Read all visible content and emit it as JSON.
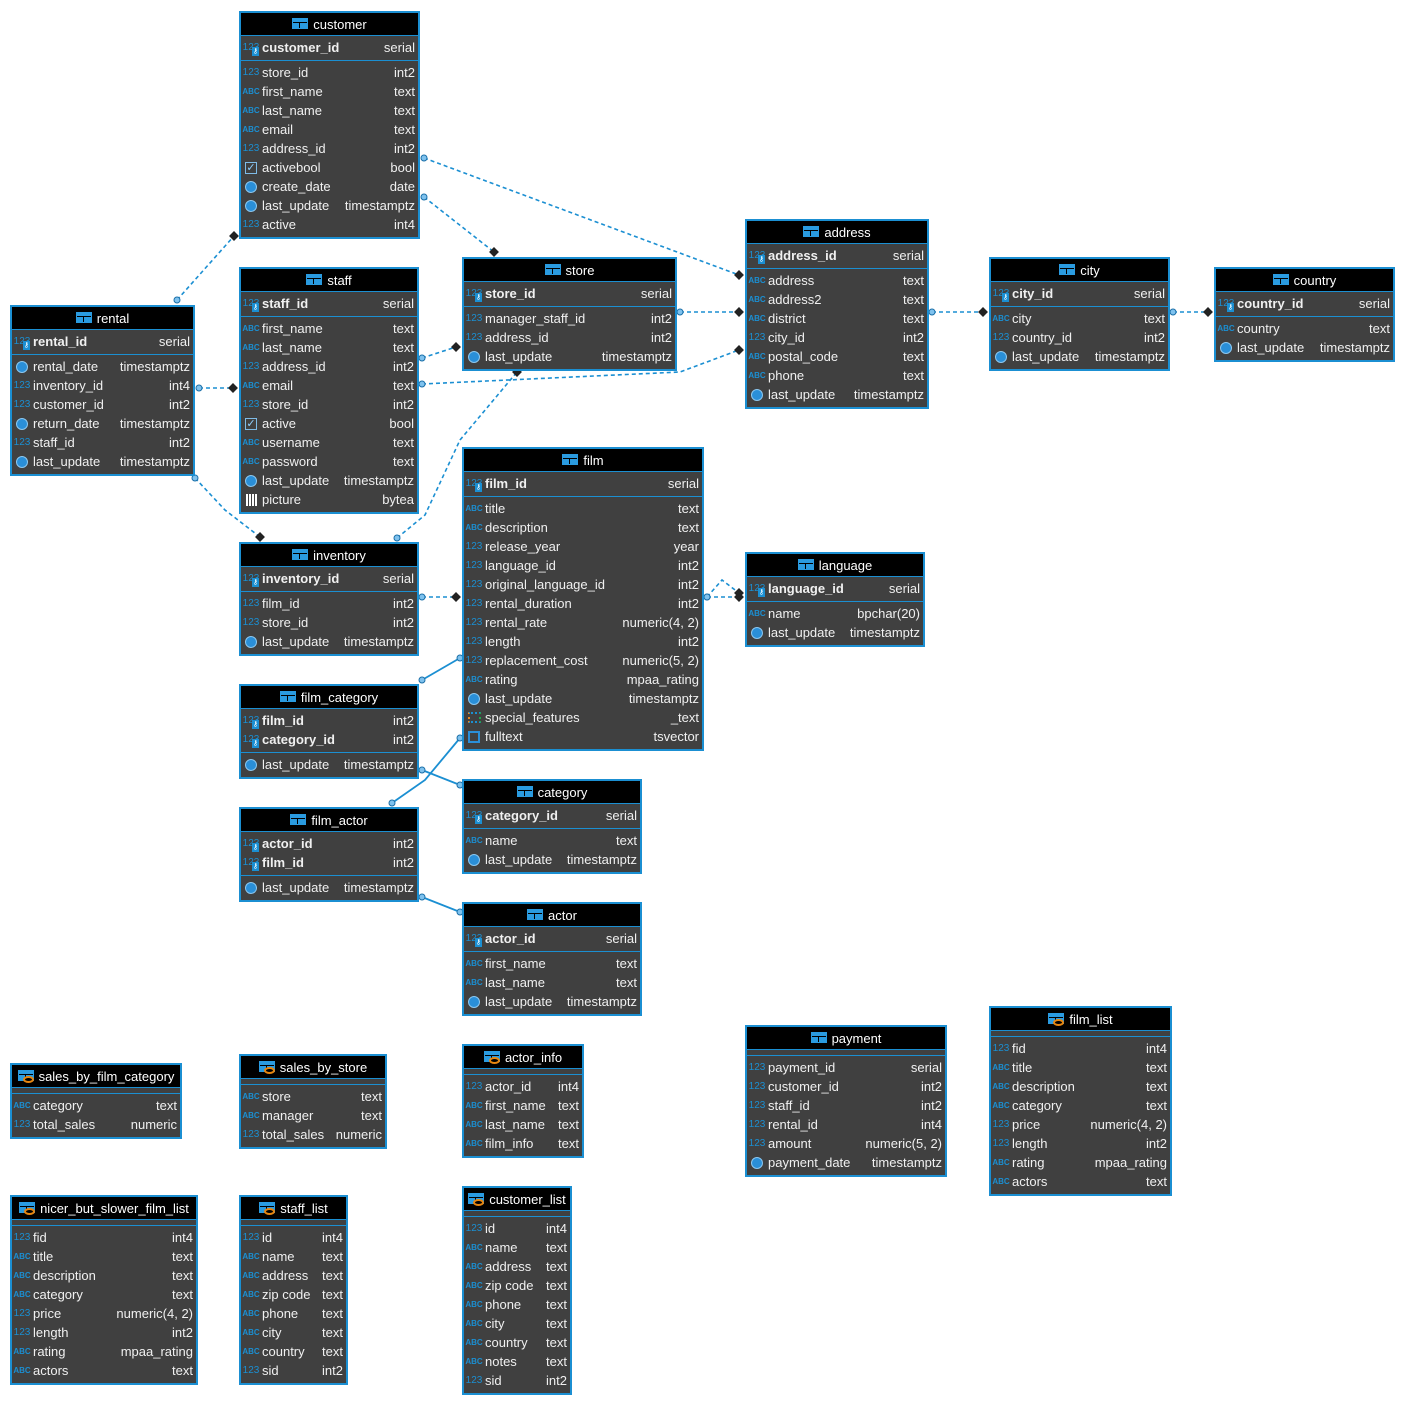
{
  "colors": {
    "border": "#1b8fd2",
    "header": "#000000",
    "body": "#404040",
    "link": "#1b8fd2"
  },
  "tables": [
    {
      "name": "customer",
      "kind": "table",
      "keys": [
        {
          "name": "customer_id",
          "type": "serial",
          "icon": "num"
        }
      ],
      "columns": [
        {
          "name": "store_id",
          "type": "int2",
          "icon": "num"
        },
        {
          "name": "first_name",
          "type": "text",
          "icon": "abc"
        },
        {
          "name": "last_name",
          "type": "text",
          "icon": "abc"
        },
        {
          "name": "email",
          "type": "text",
          "icon": "abc"
        },
        {
          "name": "address_id",
          "type": "int2",
          "icon": "num"
        },
        {
          "name": "activebool",
          "type": "bool",
          "icon": "check"
        },
        {
          "name": "create_date",
          "type": "date",
          "icon": "clock"
        },
        {
          "name": "last_update",
          "type": "timestamptz",
          "icon": "clock"
        },
        {
          "name": "active",
          "type": "int4",
          "icon": "num"
        }
      ]
    },
    {
      "name": "rental",
      "kind": "table",
      "keys": [
        {
          "name": "rental_id",
          "type": "serial",
          "icon": "num"
        }
      ],
      "columns": [
        {
          "name": "rental_date",
          "type": "timestamptz",
          "icon": "clock"
        },
        {
          "name": "inventory_id",
          "type": "int4",
          "icon": "num"
        },
        {
          "name": "customer_id",
          "type": "int2",
          "icon": "num"
        },
        {
          "name": "return_date",
          "type": "timestamptz",
          "icon": "clock"
        },
        {
          "name": "staff_id",
          "type": "int2",
          "icon": "num"
        },
        {
          "name": "last_update",
          "type": "timestamptz",
          "icon": "clock"
        }
      ]
    },
    {
      "name": "staff",
      "kind": "table",
      "keys": [
        {
          "name": "staff_id",
          "type": "serial",
          "icon": "num"
        }
      ],
      "columns": [
        {
          "name": "first_name",
          "type": "text",
          "icon": "abc"
        },
        {
          "name": "last_name",
          "type": "text",
          "icon": "abc"
        },
        {
          "name": "address_id",
          "type": "int2",
          "icon": "num"
        },
        {
          "name": "email",
          "type": "text",
          "icon": "abc"
        },
        {
          "name": "store_id",
          "type": "int2",
          "icon": "num"
        },
        {
          "name": "active",
          "type": "bool",
          "icon": "check"
        },
        {
          "name": "username",
          "type": "text",
          "icon": "abc"
        },
        {
          "name": "password",
          "type": "text",
          "icon": "abc"
        },
        {
          "name": "last_update",
          "type": "timestamptz",
          "icon": "clock"
        },
        {
          "name": "picture",
          "type": "bytea",
          "icon": "image"
        }
      ]
    },
    {
      "name": "store",
      "kind": "table",
      "keys": [
        {
          "name": "store_id",
          "type": "serial",
          "icon": "num"
        }
      ],
      "columns": [
        {
          "name": "manager_staff_id",
          "type": "int2",
          "icon": "num"
        },
        {
          "name": "address_id",
          "type": "int2",
          "icon": "num"
        },
        {
          "name": "last_update",
          "type": "timestamptz",
          "icon": "clock"
        }
      ]
    },
    {
      "name": "address",
      "kind": "table",
      "keys": [
        {
          "name": "address_id",
          "type": "serial",
          "icon": "num"
        }
      ],
      "columns": [
        {
          "name": "address",
          "type": "text",
          "icon": "abc"
        },
        {
          "name": "address2",
          "type": "text",
          "icon": "abc"
        },
        {
          "name": "district",
          "type": "text",
          "icon": "abc"
        },
        {
          "name": "city_id",
          "type": "int2",
          "icon": "num"
        },
        {
          "name": "postal_code",
          "type": "text",
          "icon": "abc"
        },
        {
          "name": "phone",
          "type": "text",
          "icon": "abc"
        },
        {
          "name": "last_update",
          "type": "timestamptz",
          "icon": "clock"
        }
      ]
    },
    {
      "name": "city",
      "kind": "table",
      "keys": [
        {
          "name": "city_id",
          "type": "serial",
          "icon": "num"
        }
      ],
      "columns": [
        {
          "name": "city",
          "type": "text",
          "icon": "abc"
        },
        {
          "name": "country_id",
          "type": "int2",
          "icon": "num"
        },
        {
          "name": "last_update",
          "type": "timestamptz",
          "icon": "clock"
        }
      ]
    },
    {
      "name": "country",
      "kind": "table",
      "keys": [
        {
          "name": "country_id",
          "type": "serial",
          "icon": "num"
        }
      ],
      "columns": [
        {
          "name": "country",
          "type": "text",
          "icon": "abc"
        },
        {
          "name": "last_update",
          "type": "timestamptz",
          "icon": "clock"
        }
      ]
    },
    {
      "name": "film",
      "kind": "table",
      "keys": [
        {
          "name": "film_id",
          "type": "serial",
          "icon": "num"
        }
      ],
      "columns": [
        {
          "name": "title",
          "type": "text",
          "icon": "abc"
        },
        {
          "name": "description",
          "type": "text",
          "icon": "abc"
        },
        {
          "name": "release_year",
          "type": "year",
          "icon": "num"
        },
        {
          "name": "language_id",
          "type": "int2",
          "icon": "num"
        },
        {
          "name": "original_language_id",
          "type": "int2",
          "icon": "num"
        },
        {
          "name": "rental_duration",
          "type": "int2",
          "icon": "num"
        },
        {
          "name": "rental_rate",
          "type": "numeric(4, 2)",
          "icon": "num"
        },
        {
          "name": "length",
          "type": "int2",
          "icon": "num"
        },
        {
          "name": "replacement_cost",
          "type": "numeric(5, 2)",
          "icon": "num"
        },
        {
          "name": "rating",
          "type": "mpaa_rating",
          "icon": "abc"
        },
        {
          "name": "last_update",
          "type": "timestamptz",
          "icon": "clock"
        },
        {
          "name": "special_features",
          "type": "_text",
          "icon": "array"
        },
        {
          "name": "fulltext",
          "type": "tsvector",
          "icon": "doc"
        }
      ]
    },
    {
      "name": "language",
      "kind": "table",
      "keys": [
        {
          "name": "language_id",
          "type": "serial",
          "icon": "num"
        }
      ],
      "columns": [
        {
          "name": "name",
          "type": "bpchar(20)",
          "icon": "abc"
        },
        {
          "name": "last_update",
          "type": "timestamptz",
          "icon": "clock"
        }
      ]
    },
    {
      "name": "inventory",
      "kind": "table",
      "keys": [
        {
          "name": "inventory_id",
          "type": "serial",
          "icon": "num"
        }
      ],
      "columns": [
        {
          "name": "film_id",
          "type": "int2",
          "icon": "num"
        },
        {
          "name": "store_id",
          "type": "int2",
          "icon": "num"
        },
        {
          "name": "last_update",
          "type": "timestamptz",
          "icon": "clock"
        }
      ]
    },
    {
      "name": "film_category",
      "kind": "table",
      "keys": [
        {
          "name": "film_id",
          "type": "int2",
          "icon": "num"
        },
        {
          "name": "category_id",
          "type": "int2",
          "icon": "num"
        }
      ],
      "columns": [
        {
          "name": "last_update",
          "type": "timestamptz",
          "icon": "clock"
        }
      ]
    },
    {
      "name": "category",
      "kind": "table",
      "keys": [
        {
          "name": "category_id",
          "type": "serial",
          "icon": "num"
        }
      ],
      "columns": [
        {
          "name": "name",
          "type": "text",
          "icon": "abc"
        },
        {
          "name": "last_update",
          "type": "timestamptz",
          "icon": "clock"
        }
      ]
    },
    {
      "name": "film_actor",
      "kind": "table",
      "keys": [
        {
          "name": "actor_id",
          "type": "int2",
          "icon": "num"
        },
        {
          "name": "film_id",
          "type": "int2",
          "icon": "num"
        }
      ],
      "columns": [
        {
          "name": "last_update",
          "type": "timestamptz",
          "icon": "clock"
        }
      ]
    },
    {
      "name": "actor",
      "kind": "table",
      "keys": [
        {
          "name": "actor_id",
          "type": "serial",
          "icon": "num"
        }
      ],
      "columns": [
        {
          "name": "first_name",
          "type": "text",
          "icon": "abc"
        },
        {
          "name": "last_name",
          "type": "text",
          "icon": "abc"
        },
        {
          "name": "last_update",
          "type": "timestamptz",
          "icon": "clock"
        }
      ]
    },
    {
      "name": "sales_by_film_category",
      "kind": "view",
      "keys": [],
      "columns": [
        {
          "name": "category",
          "type": "text",
          "icon": "abc"
        },
        {
          "name": "total_sales",
          "type": "numeric",
          "icon": "num"
        }
      ]
    },
    {
      "name": "sales_by_store",
      "kind": "view",
      "keys": [],
      "columns": [
        {
          "name": "store",
          "type": "text",
          "icon": "abc"
        },
        {
          "name": "manager",
          "type": "text",
          "icon": "abc"
        },
        {
          "name": "total_sales",
          "type": "numeric",
          "icon": "num"
        }
      ]
    },
    {
      "name": "actor_info",
      "kind": "view",
      "keys": [],
      "columns": [
        {
          "name": "actor_id",
          "type": "int4",
          "icon": "num"
        },
        {
          "name": "first_name",
          "type": "text",
          "icon": "abc"
        },
        {
          "name": "last_name",
          "type": "text",
          "icon": "abc"
        },
        {
          "name": "film_info",
          "type": "text",
          "icon": "abc"
        }
      ]
    },
    {
      "name": "payment",
      "kind": "table",
      "keys": [],
      "columns": [
        {
          "name": "payment_id",
          "type": "serial",
          "icon": "num"
        },
        {
          "name": "customer_id",
          "type": "int2",
          "icon": "num"
        },
        {
          "name": "staff_id",
          "type": "int2",
          "icon": "num"
        },
        {
          "name": "rental_id",
          "type": "int4",
          "icon": "num"
        },
        {
          "name": "amount",
          "type": "numeric(5, 2)",
          "icon": "num"
        },
        {
          "name": "payment_date",
          "type": "timestamptz",
          "icon": "clock"
        }
      ]
    },
    {
      "name": "film_list",
      "kind": "view",
      "keys": [],
      "columns": [
        {
          "name": "fid",
          "type": "int4",
          "icon": "num"
        },
        {
          "name": "title",
          "type": "text",
          "icon": "abc"
        },
        {
          "name": "description",
          "type": "text",
          "icon": "abc"
        },
        {
          "name": "category",
          "type": "text",
          "icon": "abc"
        },
        {
          "name": "price",
          "type": "numeric(4, 2)",
          "icon": "num"
        },
        {
          "name": "length",
          "type": "int2",
          "icon": "num"
        },
        {
          "name": "rating",
          "type": "mpaa_rating",
          "icon": "abc"
        },
        {
          "name": "actors",
          "type": "text",
          "icon": "abc"
        }
      ]
    },
    {
      "name": "nicer_but_slower_film_list",
      "kind": "view",
      "keys": [],
      "columns": [
        {
          "name": "fid",
          "type": "int4",
          "icon": "num"
        },
        {
          "name": "title",
          "type": "text",
          "icon": "abc"
        },
        {
          "name": "description",
          "type": "text",
          "icon": "abc"
        },
        {
          "name": "category",
          "type": "text",
          "icon": "abc"
        },
        {
          "name": "price",
          "type": "numeric(4, 2)",
          "icon": "num"
        },
        {
          "name": "length",
          "type": "int2",
          "icon": "num"
        },
        {
          "name": "rating",
          "type": "mpaa_rating",
          "icon": "abc"
        },
        {
          "name": "actors",
          "type": "text",
          "icon": "abc"
        }
      ]
    },
    {
      "name": "staff_list",
      "kind": "view",
      "keys": [],
      "columns": [
        {
          "name": "id",
          "type": "int4",
          "icon": "num"
        },
        {
          "name": "name",
          "type": "text",
          "icon": "abc"
        },
        {
          "name": "address",
          "type": "text",
          "icon": "abc"
        },
        {
          "name": "zip code",
          "type": "text",
          "icon": "abc"
        },
        {
          "name": "phone",
          "type": "text",
          "icon": "abc"
        },
        {
          "name": "city",
          "type": "text",
          "icon": "abc"
        },
        {
          "name": "country",
          "type": "text",
          "icon": "abc"
        },
        {
          "name": "sid",
          "type": "int2",
          "icon": "num"
        }
      ]
    },
    {
      "name": "customer_list",
      "kind": "view",
      "keys": [],
      "columns": [
        {
          "name": "id",
          "type": "int4",
          "icon": "num"
        },
        {
          "name": "name",
          "type": "text",
          "icon": "abc"
        },
        {
          "name": "address",
          "type": "text",
          "icon": "abc"
        },
        {
          "name": "zip code",
          "type": "text",
          "icon": "abc"
        },
        {
          "name": "phone",
          "type": "text",
          "icon": "abc"
        },
        {
          "name": "city",
          "type": "text",
          "icon": "abc"
        },
        {
          "name": "country",
          "type": "text",
          "icon": "abc"
        },
        {
          "name": "notes",
          "type": "text",
          "icon": "abc"
        },
        {
          "name": "sid",
          "type": "int2",
          "icon": "num"
        }
      ]
    }
  ]
}
